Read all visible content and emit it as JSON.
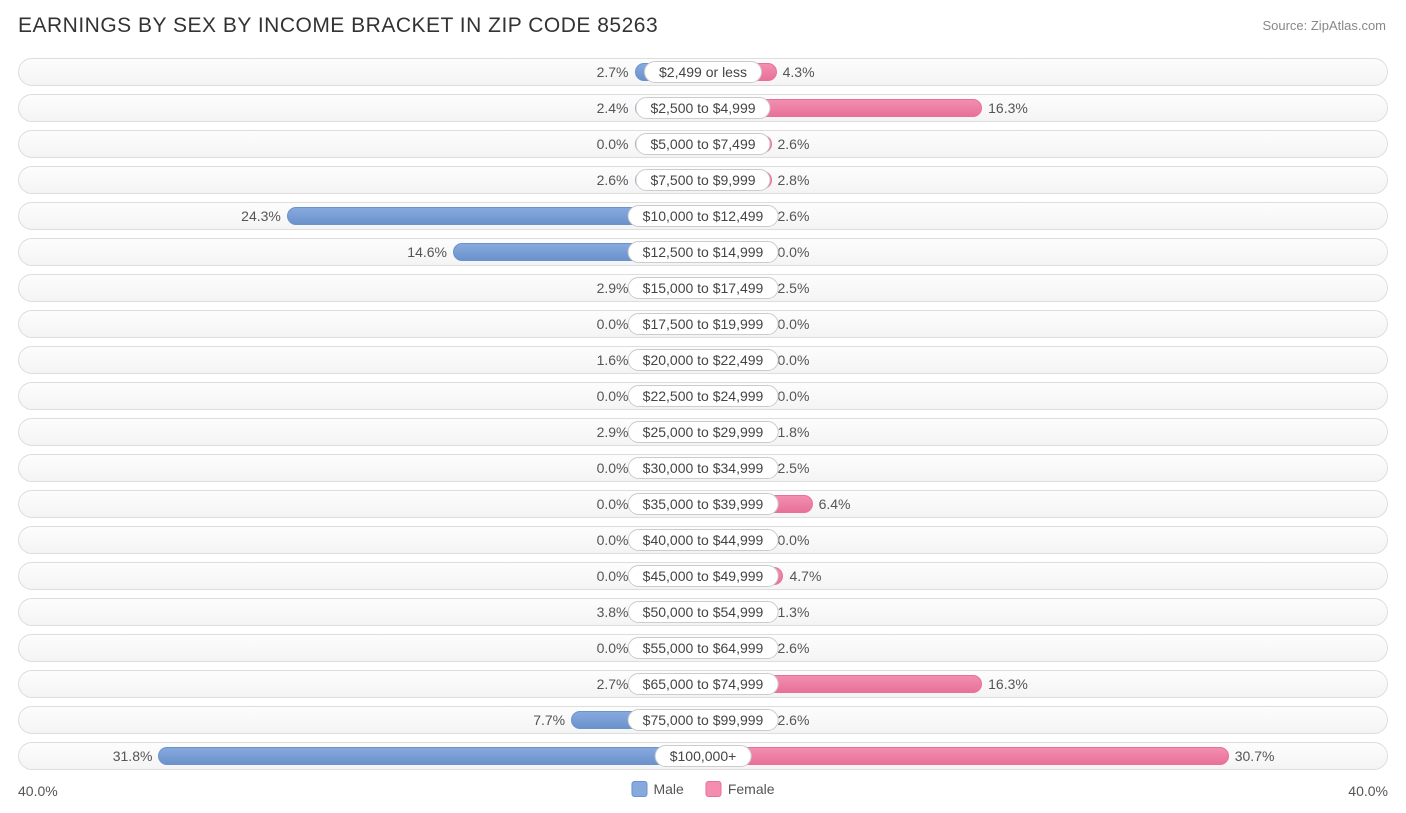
{
  "title": "EARNINGS BY SEX BY INCOME BRACKET IN ZIP CODE 85263",
  "source": "Source: ZipAtlas.com",
  "axis_max_label": "40.0%",
  "axis_max_value": 40.0,
  "legend": {
    "male": "Male",
    "female": "Female"
  },
  "colors": {
    "male_fill": "#87aade",
    "male_border": "#6b92cc",
    "female_fill": "#f38eb1",
    "female_border": "#e87199",
    "track_border": "#dddddd",
    "label_border": "#cccccc",
    "text": "#555555",
    "title": "#333333",
    "source": "#888888",
    "background": "#ffffff"
  },
  "min_bar_pct": 5.0,
  "label_half_width_pct": 10.5,
  "rows": [
    {
      "label": "$2,499 or less",
      "male": 2.7,
      "female": 4.3
    },
    {
      "label": "$2,500 to $4,999",
      "male": 2.4,
      "female": 16.3
    },
    {
      "label": "$5,000 to $7,499",
      "male": 0.0,
      "female": 2.6
    },
    {
      "label": "$7,500 to $9,999",
      "male": 2.6,
      "female": 2.8
    },
    {
      "label": "$10,000 to $12,499",
      "male": 24.3,
      "female": 2.6
    },
    {
      "label": "$12,500 to $14,999",
      "male": 14.6,
      "female": 0.0
    },
    {
      "label": "$15,000 to $17,499",
      "male": 2.9,
      "female": 2.5
    },
    {
      "label": "$17,500 to $19,999",
      "male": 0.0,
      "female": 0.0
    },
    {
      "label": "$20,000 to $22,499",
      "male": 1.6,
      "female": 0.0
    },
    {
      "label": "$22,500 to $24,999",
      "male": 0.0,
      "female": 0.0
    },
    {
      "label": "$25,000 to $29,999",
      "male": 2.9,
      "female": 1.8
    },
    {
      "label": "$30,000 to $34,999",
      "male": 0.0,
      "female": 2.5
    },
    {
      "label": "$35,000 to $39,999",
      "male": 0.0,
      "female": 6.4
    },
    {
      "label": "$40,000 to $44,999",
      "male": 0.0,
      "female": 0.0
    },
    {
      "label": "$45,000 to $49,999",
      "male": 0.0,
      "female": 4.7
    },
    {
      "label": "$50,000 to $54,999",
      "male": 3.8,
      "female": 1.3
    },
    {
      "label": "$55,000 to $64,999",
      "male": 0.0,
      "female": 2.6
    },
    {
      "label": "$65,000 to $74,999",
      "male": 2.7,
      "female": 16.3
    },
    {
      "label": "$75,000 to $99,999",
      "male": 7.7,
      "female": 2.6
    },
    {
      "label": "$100,000+",
      "male": 31.8,
      "female": 30.7
    }
  ]
}
